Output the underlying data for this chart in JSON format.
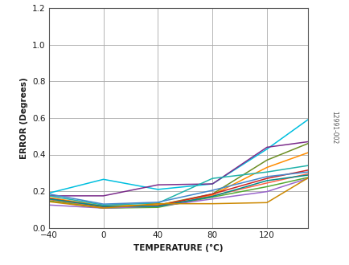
{
  "xlabel": "TEMPERATURE (°C)",
  "ylabel": "ERROR (Degrees)",
  "watermark": "12991-002",
  "xlim": [
    -40,
    150
  ],
  "ylim": [
    0,
    1.2
  ],
  "xticks": [
    -40,
    0,
    40,
    80,
    120
  ],
  "yticks": [
    0,
    0.2,
    0.4,
    0.6,
    0.8,
    1.0,
    1.2
  ],
  "x_points": [
    -40,
    0,
    40,
    80,
    120,
    150
  ],
  "lines": [
    {
      "color": "#00BFDF",
      "data": [
        0.19,
        0.265,
        0.21,
        0.24,
        0.43,
        0.59
      ]
    },
    {
      "color": "#7B2D8B",
      "data": [
        0.175,
        0.175,
        0.235,
        0.24,
        0.44,
        0.47
      ]
    },
    {
      "color": "#6B8E23",
      "data": [
        0.16,
        0.115,
        0.125,
        0.185,
        0.37,
        0.46
      ]
    },
    {
      "color": "#FF8C00",
      "data": [
        0.165,
        0.12,
        0.125,
        0.18,
        0.33,
        0.41
      ]
    },
    {
      "color": "#20B2AA",
      "data": [
        0.175,
        0.125,
        0.135,
        0.27,
        0.305,
        0.34
      ]
    },
    {
      "color": "#CC2222",
      "data": [
        0.16,
        0.115,
        0.12,
        0.185,
        0.27,
        0.315
      ]
    },
    {
      "color": "#4488CC",
      "data": [
        0.185,
        0.13,
        0.14,
        0.205,
        0.28,
        0.305
      ]
    },
    {
      "color": "#FF6347",
      "data": [
        0.155,
        0.11,
        0.115,
        0.175,
        0.245,
        0.295
      ]
    },
    {
      "color": "#55AA33",
      "data": [
        0.148,
        0.108,
        0.112,
        0.168,
        0.225,
        0.275
      ]
    },
    {
      "color": "#9966CC",
      "data": [
        0.125,
        0.108,
        0.118,
        0.158,
        0.198,
        0.27
      ]
    },
    {
      "color": "#008B8B",
      "data": [
        0.158,
        0.118,
        0.118,
        0.172,
        0.258,
        0.288
      ]
    },
    {
      "color": "#CC8800",
      "data": [
        0.143,
        0.108,
        0.132,
        0.132,
        0.138,
        0.272
      ]
    }
  ]
}
